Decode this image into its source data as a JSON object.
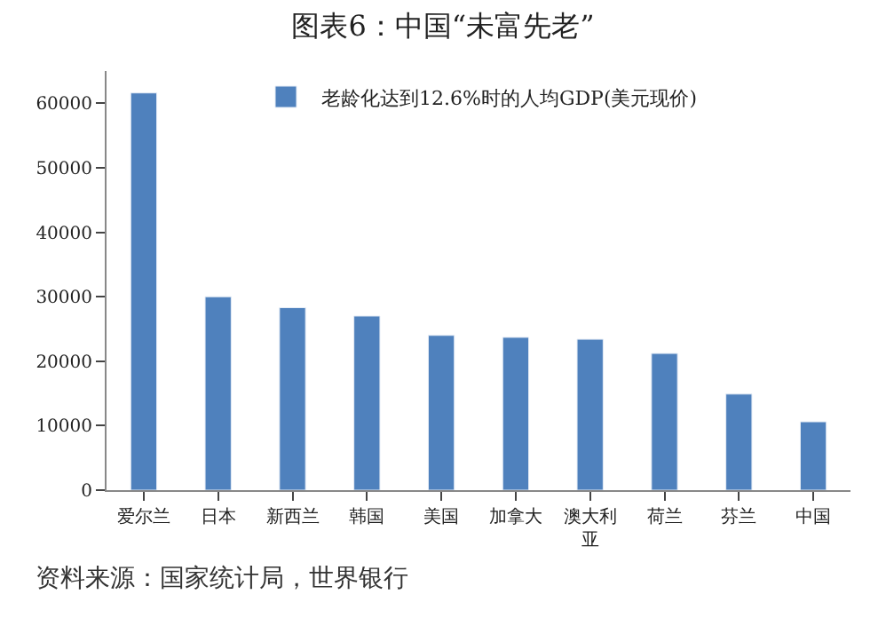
{
  "chart_data": {
    "type": "bar",
    "title": "图表6：中国“未富先老”",
    "categories": [
      "爱尔兰",
      "日本",
      "新西兰",
      "韩国",
      "美国",
      "加拿大",
      "澳大利亚",
      "荷兰",
      "芬兰",
      "中国"
    ],
    "series": [
      {
        "name": "老龄化达到12.6%时的人均GDP(美元现价)",
        "color": "#4f81bd",
        "values": [
          61600,
          30000,
          28300,
          27000,
          24000,
          23700,
          23400,
          21200,
          14900,
          10600
        ]
      }
    ],
    "ylim": [
      0,
      65000
    ],
    "yticks": [
      0,
      10000,
      20000,
      30000,
      40000,
      50000,
      60000
    ],
    "grid": false,
    "legend": "top",
    "annotations": [
      "资料来源：国家统计局，世界银行"
    ]
  }
}
